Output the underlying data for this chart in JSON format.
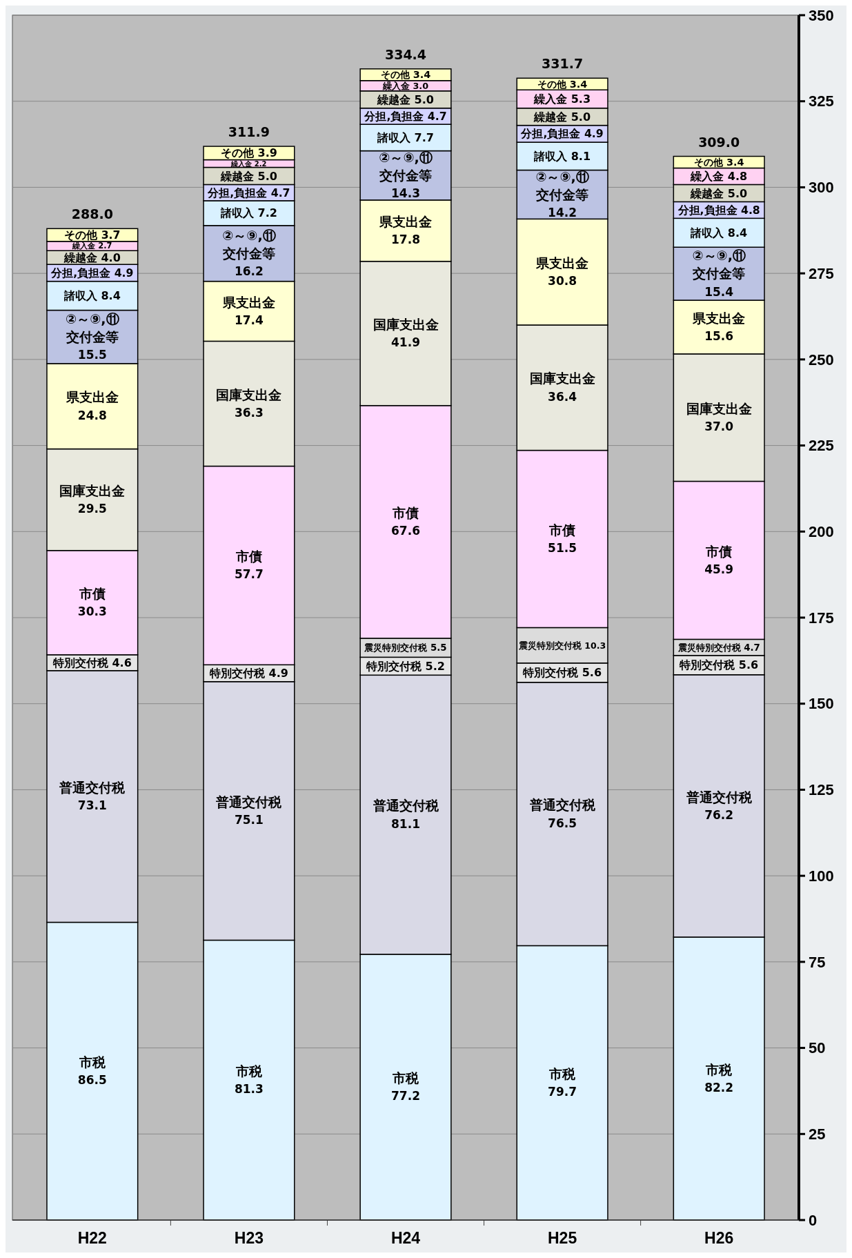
{
  "chart_data": {
    "type": "bar",
    "stacked": true,
    "categories": [
      "H22",
      "H23",
      "H24",
      "H25",
      "H26"
    ],
    "series": [
      {
        "name": "市税",
        "color": "#dff3ff",
        "values": [
          86.5,
          81.3,
          77.2,
          79.7,
          82.2
        ],
        "value_labels": [
          "86.5",
          "81.3",
          "77.2",
          "79.7",
          "82.2"
        ]
      },
      {
        "name": "普通交付税",
        "color": "#d9d9e6",
        "values": [
          73.1,
          75.1,
          81.1,
          76.5,
          76.2
        ],
        "value_labels": [
          "73.1",
          "75.1",
          "81.1",
          "76.5",
          "76.2"
        ]
      },
      {
        "name": "特別交付税",
        "color": "#e6e6e6",
        "values": [
          4.6,
          4.9,
          5.2,
          5.6,
          5.6
        ],
        "value_labels": [
          "4.6",
          "4.9",
          "5.2",
          "5.6",
          "5.6"
        ]
      },
      {
        "name": "震災特別交付税",
        "color": "#dcdcdc",
        "values": [
          null,
          null,
          5.5,
          10.3,
          4.7
        ],
        "value_labels": [
          null,
          null,
          "5.5",
          "10.3",
          "4.7"
        ]
      },
      {
        "name": "市債",
        "color": "#ffd9ff",
        "values": [
          30.3,
          57.7,
          67.6,
          51.5,
          45.9
        ],
        "value_labels": [
          "30.3",
          "57.7",
          "67.6",
          "51.5",
          "45.9"
        ]
      },
      {
        "name": "国庫支出金",
        "color": "#e9e9de",
        "values": [
          29.5,
          36.3,
          41.9,
          36.4,
          37.0
        ],
        "value_labels": [
          "29.5",
          "36.3",
          "41.9",
          "36.4",
          "37.0"
        ]
      },
      {
        "name": "県支出金",
        "color": "#ffffd2",
        "values": [
          24.8,
          17.4,
          17.8,
          30.8,
          15.6
        ],
        "value_labels": [
          "24.8",
          "17.4",
          "17.8",
          "30.8",
          "15.6"
        ]
      },
      {
        "name": "②～⑨,⑪交付金等",
        "color": "#bcc3e3",
        "values": [
          15.5,
          16.2,
          14.3,
          14.2,
          15.4
        ],
        "value_labels": [
          "15.5",
          "16.2",
          "14.3",
          "14.2",
          "15.4"
        ]
      },
      {
        "name": "諸収入",
        "color": "#d9f1ff",
        "values": [
          8.4,
          7.2,
          7.7,
          8.1,
          8.4
        ],
        "value_labels": [
          "8.4",
          "7.2",
          "7.7",
          "8.1",
          "8.4"
        ]
      },
      {
        "name": "分担,負担金",
        "color": "#d4d4ff",
        "values": [
          4.9,
          4.7,
          4.7,
          4.9,
          4.8
        ],
        "value_labels": [
          "4.9",
          "4.7",
          "4.7",
          "4.9",
          "4.8"
        ]
      },
      {
        "name": "繰越金",
        "color": "#dadacb",
        "values": [
          4.0,
          5.0,
          5.0,
          5.0,
          5.0
        ],
        "value_labels": [
          "4.0",
          "5.0",
          "5.0",
          "5.0",
          "5.0"
        ]
      },
      {
        "name": "繰入金",
        "color": "#ffd2f2",
        "values": [
          2.7,
          2.2,
          3.0,
          5.3,
          4.8
        ],
        "value_labels": [
          "2.7",
          "2.2",
          "3.0",
          "5.3",
          "4.8"
        ]
      },
      {
        "name": "その他",
        "color": "#ffffc4",
        "values": [
          3.7,
          3.9,
          3.4,
          3.4,
          3.4
        ],
        "value_labels": [
          "3.7",
          "3.9",
          "3.4",
          "3.4",
          "3.4"
        ]
      }
    ],
    "totals": [
      "288.0",
      "311.9",
      "334.4",
      "331.7",
      "309.0"
    ],
    "ylim": [
      0,
      350
    ],
    "yticks": [
      0,
      25,
      50,
      75,
      100,
      125,
      150,
      175,
      200,
      225,
      250,
      275,
      300,
      325,
      350
    ],
    "grid": true
  }
}
